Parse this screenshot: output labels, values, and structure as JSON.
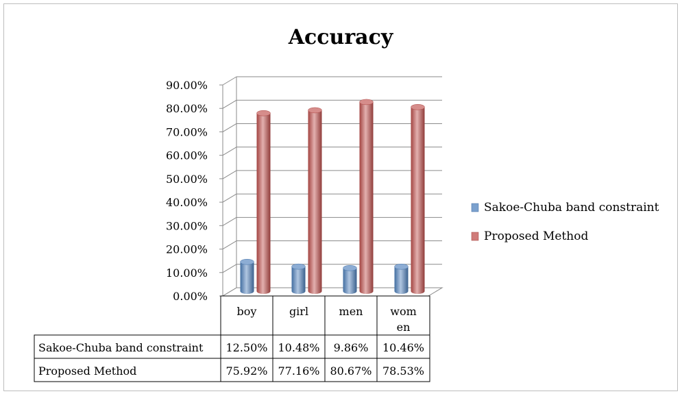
{
  "chart_data": {
    "type": "bar",
    "title": "Accuracy",
    "categories": [
      "boy",
      "girl",
      "men",
      "women"
    ],
    "category_labels": [
      [
        "boy"
      ],
      [
        "girl"
      ],
      [
        "men"
      ],
      [
        "wom",
        "en"
      ]
    ],
    "series": [
      {
        "name": "Sakoe-Chuba band constraint",
        "values": [
          0.125,
          0.1048,
          0.0986,
          0.1046
        ],
        "labels": [
          "12.50%",
          "10.48%",
          "9.86%",
          "10.46%"
        ],
        "color": "#4f81bd"
      },
      {
        "name": "Proposed Method",
        "values": [
          0.7592,
          0.7716,
          0.8067,
          0.7853
        ],
        "labels": [
          "75.92%",
          "77.16%",
          "80.67%",
          "78.53%"
        ],
        "color": "#c0504d"
      }
    ],
    "ylim": [
      0,
      0.9
    ],
    "y_ticks": [
      "0.00%",
      "10.00%",
      "20.00%",
      "30.00%",
      "40.00%",
      "50.00%",
      "60.00%",
      "70.00%",
      "80.00%",
      "90.00%"
    ],
    "grid": true,
    "legend": "right",
    "style": "3d-cylinder",
    "data_table": true
  }
}
